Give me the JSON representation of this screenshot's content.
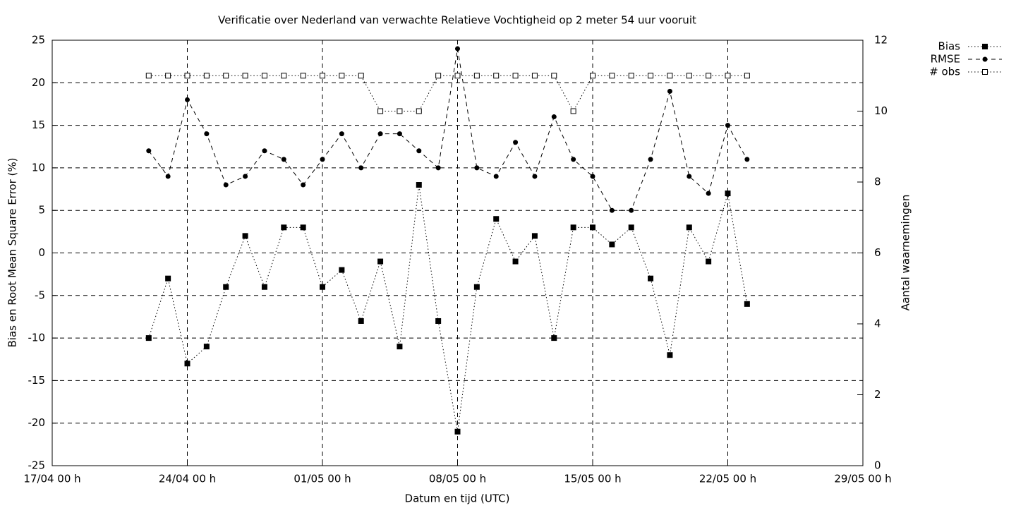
{
  "chart_data": {
    "type": "line",
    "title": "Verificatie over Nederland van verwachte Relatieve Vochtigheid op 2 meter 54 uur vooruit",
    "x_label": "Datum en tijd (UTC)",
    "y_label": "Bias en Root Mean Square Error (%)",
    "y2_label": "Aantal waarnemingen",
    "x": [
      "04-22",
      "04-23",
      "04-24",
      "04-25",
      "04-26",
      "04-27",
      "04-28",
      "04-29",
      "04-30",
      "05-01",
      "05-02",
      "05-03",
      "05-04",
      "05-05",
      "05-06",
      "05-07",
      "05-08",
      "05-09",
      "05-10",
      "05-11",
      "05-12",
      "05-13",
      "05-14",
      "05-15",
      "05-16",
      "05-17",
      "05-18",
      "05-19",
      "05-20",
      "05-21",
      "05-22",
      "05-23"
    ],
    "xlim": [
      "04-17",
      "05-29"
    ],
    "xticks": [
      {
        "value": "04-17",
        "label": "17/04 00 h"
      },
      {
        "value": "04-24",
        "label": "24/04 00 h"
      },
      {
        "value": "05-01",
        "label": "01/05 00 h"
      },
      {
        "value": "05-08",
        "label": "08/05 00 h"
      },
      {
        "value": "05-15",
        "label": "15/05 00 h"
      },
      {
        "value": "05-22",
        "label": "22/05 00 h"
      },
      {
        "value": "05-29",
        "label": "29/05 00 h"
      }
    ],
    "ylim": [
      -25,
      25
    ],
    "yticks": [
      -25,
      -20,
      -15,
      -10,
      -5,
      0,
      5,
      10,
      15,
      20,
      25
    ],
    "y2lim": [
      0,
      12
    ],
    "y2ticks": [
      0,
      2,
      4,
      6,
      8,
      10,
      12
    ],
    "grid": true,
    "legend": "outside-top-right",
    "series": [
      {
        "name": "Bias",
        "color": "#000000",
        "dash": "dotted",
        "marker": "filled-square",
        "values": [
          -10,
          -3,
          -13,
          -11,
          -4,
          2,
          -4,
          3,
          3,
          -4,
          -2,
          -8,
          -1,
          -11,
          8,
          -8,
          -21,
          -4,
          4,
          -1,
          2,
          -10,
          3,
          3,
          1,
          3,
          -3,
          -12,
          3,
          -1,
          7,
          -6
        ]
      },
      {
        "name": "RMSE",
        "color": "#000000",
        "dash": "dashed",
        "marker": "filled-circle",
        "values": [
          12,
          9,
          18,
          14,
          8,
          9,
          12,
          11,
          8,
          11,
          14,
          10,
          14,
          14,
          12,
          10,
          24,
          10,
          9,
          13,
          9,
          16,
          11,
          9,
          5,
          5,
          11,
          19,
          9,
          7,
          15,
          11
        ]
      },
      {
        "name": "# obs",
        "color": "#000000",
        "dash": "dotted",
        "marker": "open-square",
        "axis": "y2",
        "values": [
          11,
          11,
          11,
          11,
          11,
          11,
          11,
          11,
          11,
          11,
          11,
          11,
          10,
          10,
          10,
          11,
          11,
          11,
          11,
          11,
          11,
          11,
          10,
          11,
          11,
          11,
          11,
          11,
          11,
          11,
          11,
          11
        ]
      }
    ]
  }
}
